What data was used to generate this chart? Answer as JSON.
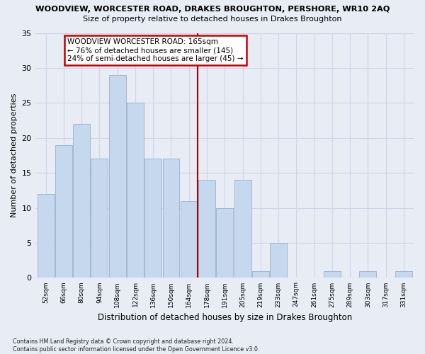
{
  "title1": "WOODVIEW, WORCESTER ROAD, DRAKES BROUGHTON, PERSHORE, WR10 2AQ",
  "title2": "Size of property relative to detached houses in Drakes Broughton",
  "xlabel": "Distribution of detached houses by size in Drakes Broughton",
  "ylabel": "Number of detached properties",
  "footnote": "Contains HM Land Registry data © Crown copyright and database right 2024.\nContains public sector information licensed under the Open Government Licence v3.0.",
  "categories": [
    "52sqm",
    "66sqm",
    "80sqm",
    "94sqm",
    "108sqm",
    "122sqm",
    "136sqm",
    "150sqm",
    "164sqm",
    "178sqm",
    "191sqm",
    "205sqm",
    "219sqm",
    "233sqm",
    "247sqm",
    "261sqm",
    "275sqm",
    "289sqm",
    "303sqm",
    "317sqm",
    "331sqm"
  ],
  "values": [
    12,
    19,
    22,
    17,
    29,
    25,
    17,
    17,
    11,
    14,
    10,
    14,
    1,
    5,
    0,
    0,
    1,
    0,
    1,
    0,
    1
  ],
  "bar_color": "#c5d8ee",
  "bar_edge_color": "#9ab0cc",
  "grid_color": "#d0d4e8",
  "background_color": "#e8ecf5",
  "vline_x": 8.5,
  "vline_color": "#aa0000",
  "annotation_text": "WOODVIEW WORCESTER ROAD: 165sqm\n← 76% of detached houses are smaller (145)\n24% of semi-detached houses are larger (45) →",
  "annotation_box_color": "#ffffff",
  "annotation_box_edge": "#cc0000",
  "ylim": [
    0,
    35
  ],
  "yticks": [
    0,
    5,
    10,
    15,
    20,
    25,
    30,
    35
  ]
}
